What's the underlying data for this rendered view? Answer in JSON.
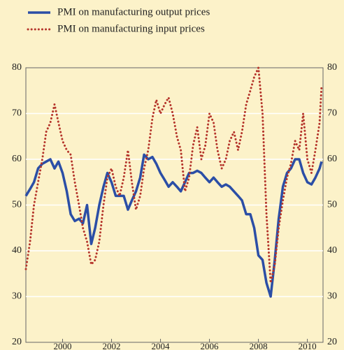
{
  "chart_data": {
    "type": "line",
    "x": [
      1999,
      1999.17,
      1999.33,
      1999.5,
      1999.67,
      1999.83,
      2000,
      2000.17,
      2000.33,
      2000.5,
      2000.67,
      2000.83,
      2001,
      2001.17,
      2001.33,
      2001.5,
      2001.67,
      2001.83,
      2002,
      2002.17,
      2002.33,
      2002.5,
      2002.67,
      2002.83,
      2003,
      2003.17,
      2003.33,
      2003.5,
      2003.67,
      2003.83,
      2004,
      2004.17,
      2004.33,
      2004.5,
      2004.67,
      2004.83,
      2005,
      2005.17,
      2005.33,
      2005.5,
      2005.67,
      2005.83,
      2006,
      2006.17,
      2006.33,
      2006.5,
      2006.67,
      2006.83,
      2007,
      2007.17,
      2007.33,
      2007.5,
      2007.67,
      2007.83,
      2008,
      2008.17,
      2008.33,
      2008.5,
      2008.67,
      2008.83,
      2009,
      2009.17,
      2009.33,
      2009.5,
      2009.67,
      2009.83,
      2010,
      2010.17,
      2010.33,
      2010.5,
      2010.67,
      2010.83,
      2011,
      2011.08
    ],
    "series": [
      {
        "name": "PMI on manufacturing output prices",
        "color": "#2b4ea6",
        "style": "solid",
        "values": [
          52,
          53.5,
          55,
          58,
          59,
          59.5,
          60,
          58,
          59.5,
          57,
          53,
          48,
          46.5,
          47,
          46,
          50,
          41.5,
          45,
          50,
          54,
          57,
          55,
          52,
          52,
          52,
          49,
          51,
          53,
          56,
          61,
          60,
          60.5,
          59,
          57,
          55.5,
          54,
          55,
          54,
          53,
          55,
          57,
          57,
          57.5,
          57,
          56,
          55,
          56,
          55,
          54,
          54.5,
          54,
          53,
          52,
          51,
          48,
          48,
          45,
          39,
          38,
          33,
          30,
          38,
          47,
          54,
          57,
          58,
          60,
          60,
          57,
          55,
          54.5,
          56,
          58,
          59.5
        ]
      },
      {
        "name": "PMI on manufacturing input prices",
        "color": "#b5352b",
        "style": "dotted",
        "values": [
          36,
          42,
          50,
          55,
          60,
          66,
          68,
          72,
          68,
          64,
          62,
          61,
          55,
          50,
          45,
          42,
          37,
          38,
          42,
          50,
          56,
          58,
          54,
          52,
          56,
          62,
          55,
          49,
          52,
          58,
          62,
          69,
          73,
          70,
          72,
          73.5,
          70,
          65,
          62,
          53,
          56,
          63,
          67,
          60,
          63,
          70,
          68,
          62,
          58,
          60,
          64,
          66,
          62,
          66,
          72,
          75,
          78,
          80,
          70,
          48,
          33,
          37,
          45,
          51,
          56,
          59,
          64,
          62,
          70,
          60,
          57,
          62,
          68,
          76
        ]
      }
    ],
    "xlim": [
      1999,
      2011.14
    ],
    "xticks": [
      {
        "value": 2000.5,
        "label": "2000"
      },
      {
        "value": 2002.5,
        "label": "2002"
      },
      {
        "value": 2004.5,
        "label": "2004"
      },
      {
        "value": 2006.5,
        "label": "2006"
      },
      {
        "value": 2008.5,
        "label": "2008"
      },
      {
        "value": 2010.5,
        "label": "2010"
      }
    ],
    "ylim": [
      20,
      80
    ],
    "yticks": [
      20,
      30,
      40,
      50,
      60,
      70,
      80
    ],
    "grid": true
  }
}
